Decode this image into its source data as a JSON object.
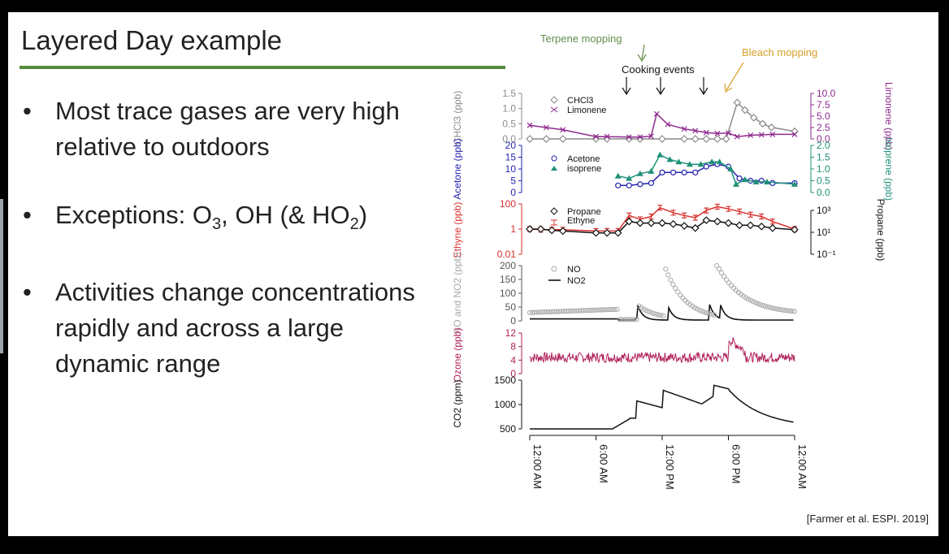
{
  "slide": {
    "title": "Layered Day example",
    "bullets": [
      {
        "pre": "Most trace gases are very high relative to outdoors"
      },
      {
        "pre": "Exceptions: O",
        "sub1": "3",
        "mid": ", OH (& HO",
        "sub2": "2",
        "post": ")"
      },
      {
        "pre": "Activities change concentrations rapidly and across a large dynamic range"
      }
    ],
    "citation": "[Farmer et al. ESPI. 2019]"
  },
  "chart_data": {
    "type": "line",
    "x_ticks": [
      "12:00 AM",
      "6:00 AM",
      "12:00 PM",
      "6:00 PM",
      "12:00 AM"
    ],
    "annotations": [
      "Terpene mopping",
      "Cooking events",
      "Bleach mopping"
    ],
    "colors": {
      "chcl3": "#8c8c8c",
      "limonene": "#8e2a8e",
      "acetone": "#2323b0",
      "isoprene": "#1f9178",
      "propane": "#111111",
      "ethyne": "#d8312d",
      "no": "#a9a9a9",
      "no2": "#111111",
      "ozone": "#b0205a",
      "co2": "#111111",
      "terpene": "#5f8e4a",
      "bleach": "#d8a02a"
    },
    "panels": [
      {
        "ylabel_left": "CHCl3 (ppb)",
        "ylabel_right": "Limonene (ppb)",
        "left_ticks": [
          "1.5",
          "1.0",
          "0.5",
          "0.0"
        ],
        "right_ticks": [
          "10.0",
          "7.5",
          "5.0",
          "2.5",
          "0.0"
        ],
        "legend": [
          "CHCl3",
          "Limonene"
        ]
      },
      {
        "ylabel_left": "Acetone (ppb)",
        "ylabel_right": "Isoprene (ppb)",
        "left_ticks": [
          "20",
          "15",
          "10",
          "5",
          "0"
        ],
        "right_ticks": [
          "2.0",
          "1.5",
          "1.0",
          "0.5",
          "0.0"
        ],
        "legend": [
          "Acetone",
          "isoprene"
        ]
      },
      {
        "ylabel_left": "Ethyne (ppb)",
        "ylabel_right": "Propane (ppb)",
        "left_ticks": [
          "100",
          "1",
          "0.01"
        ],
        "right_ticks": [
          "10³",
          "10¹",
          "10⁻¹"
        ],
        "legend": [
          "Propane",
          "Ethyne"
        ]
      },
      {
        "ylabel_left": "NO and NO2 (ppb)",
        "left_ticks": [
          "200",
          "150",
          "100",
          "50",
          "0"
        ],
        "legend": [
          "NO",
          "NO2"
        ]
      },
      {
        "ylabel_left": "Ozone (ppb)",
        "left_ticks": [
          "12",
          "8",
          "4",
          "0"
        ]
      },
      {
        "ylabel_left": "CO2 (ppm)",
        "left_ticks": [
          "1500",
          "1000",
          "500"
        ]
      }
    ]
  }
}
